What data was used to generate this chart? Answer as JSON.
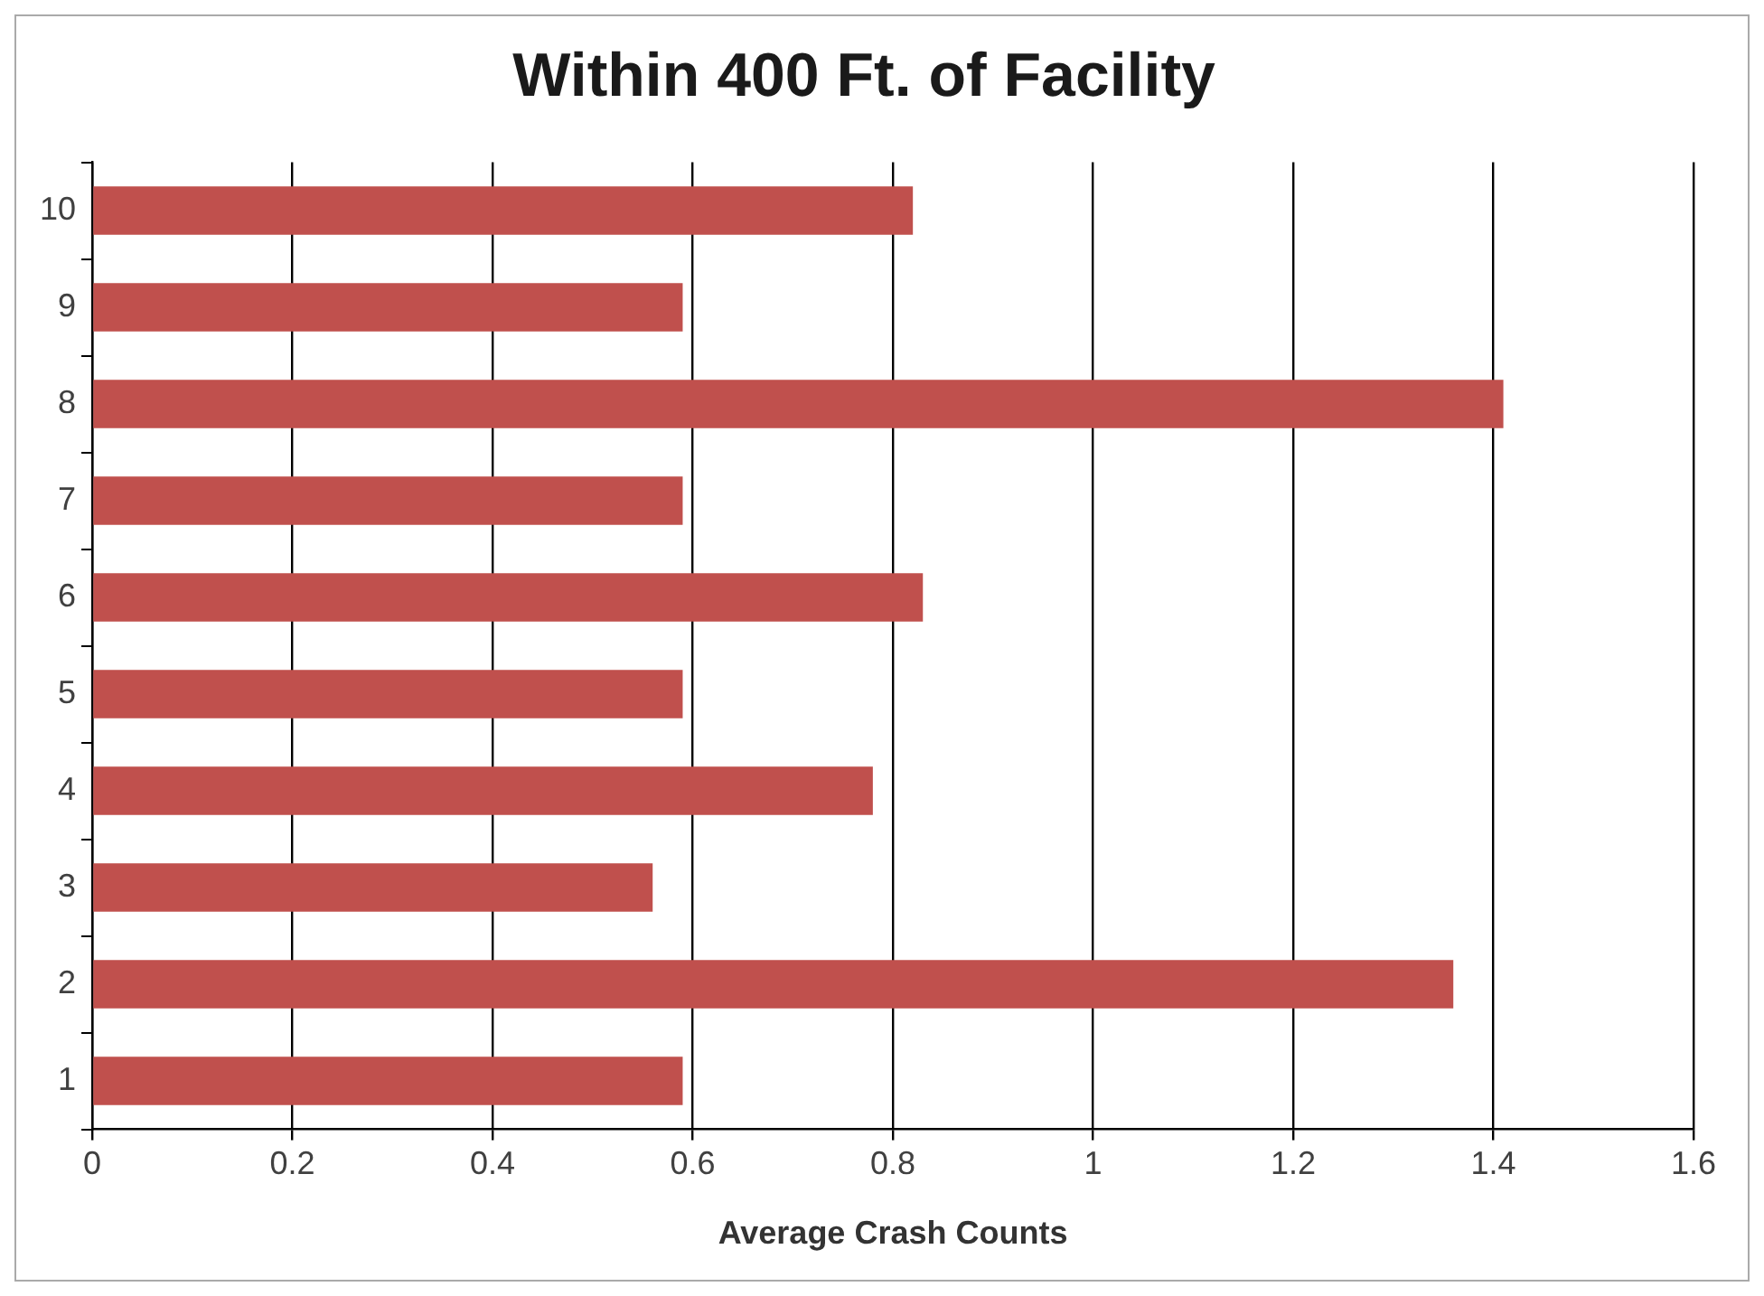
{
  "chart_data": {
    "type": "bar",
    "orientation": "horizontal",
    "title": "Within 400 Ft. of Facility",
    "xlabel": "Average Crash Counts",
    "categories": [
      "10",
      "9",
      "8",
      "7",
      "6",
      "5",
      "4",
      "3",
      "2",
      "1"
    ],
    "values": [
      0.82,
      0.59,
      1.41,
      0.59,
      0.83,
      0.59,
      0.78,
      0.56,
      1.36,
      0.59
    ],
    "color": "#c0504d",
    "xlim": [
      0,
      1.6
    ],
    "xticks": [
      0,
      0.2,
      0.4,
      0.6,
      0.8,
      1,
      1.2,
      1.4,
      1.6
    ],
    "grid": "x",
    "legend": false
  }
}
